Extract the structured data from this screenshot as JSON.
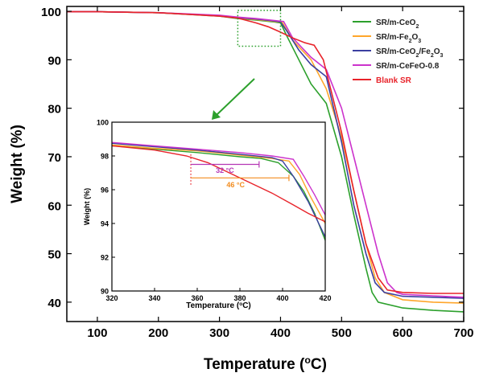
{
  "chart_data": {
    "type": "line",
    "xlabel": {
      "text": "Temperature (",
      "sup": "o",
      "tail": "C)"
    },
    "ylabel": "Weight (%)",
    "xlim": [
      50,
      700
    ],
    "ylim": [
      36,
      101
    ],
    "x_ticks": [
      100,
      200,
      300,
      400,
      500,
      600,
      700
    ],
    "y_ticks": [
      40,
      50,
      60,
      70,
      80,
      90,
      100
    ],
    "legend_position": "top-right",
    "series": [
      {
        "name": "SR/m-CeO2",
        "legend": [
          [
            "SR/m-CeO",
            ""
          ],
          [
            "2",
            "sub"
          ]
        ],
        "color": "#2ca02c",
        "points": [
          [
            50,
            99.9
          ],
          [
            100,
            99.9
          ],
          [
            200,
            99.7
          ],
          [
            300,
            99.0
          ],
          [
            330,
            98.5
          ],
          [
            360,
            98.2
          ],
          [
            390,
            97.8
          ],
          [
            400,
            97.6
          ],
          [
            410,
            95.0
          ],
          [
            430,
            90.0
          ],
          [
            450,
            85.0
          ],
          [
            475,
            81.0
          ],
          [
            500,
            70.0
          ],
          [
            520,
            58.0
          ],
          [
            540,
            47.0
          ],
          [
            550,
            42.0
          ],
          [
            560,
            40.0
          ],
          [
            600,
            38.8
          ],
          [
            650,
            38.3
          ],
          [
            700,
            38.0
          ]
        ]
      },
      {
        "name": "SR/m-Fe2O3",
        "legend": [
          [
            "SR/m-Fe",
            ""
          ],
          [
            "2",
            "sub"
          ],
          [
            "O",
            ""
          ],
          [
            "3",
            "sub"
          ]
        ],
        "color": "#ffa62b",
        "points": [
          [
            50,
            99.9
          ],
          [
            100,
            99.9
          ],
          [
            200,
            99.7
          ],
          [
            300,
            99.1
          ],
          [
            330,
            98.6
          ],
          [
            360,
            98.3
          ],
          [
            390,
            97.9
          ],
          [
            403,
            97.7
          ],
          [
            420,
            94.0
          ],
          [
            450,
            90.0
          ],
          [
            475,
            84.0
          ],
          [
            500,
            74.0
          ],
          [
            520,
            63.0
          ],
          [
            540,
            52.0
          ],
          [
            555,
            45.0
          ],
          [
            570,
            42.0
          ],
          [
            600,
            40.5
          ],
          [
            650,
            40.0
          ],
          [
            700,
            39.8
          ]
        ]
      },
      {
        "name": "SR/m-CeO2/Fe2O3",
        "legend": [
          [
            "SR/m-CeO",
            ""
          ],
          [
            "2",
            "sub"
          ],
          [
            "/Fe",
            ""
          ],
          [
            "2",
            "sub"
          ],
          [
            "O",
            ""
          ],
          [
            "3",
            "sub"
          ]
        ],
        "color": "#3b3fa0",
        "points": [
          [
            50,
            99.9
          ],
          [
            100,
            99.9
          ],
          [
            200,
            99.7
          ],
          [
            300,
            99.1
          ],
          [
            330,
            98.7
          ],
          [
            360,
            98.4
          ],
          [
            390,
            98.0
          ],
          [
            400,
            97.8
          ],
          [
            410,
            96.0
          ],
          [
            430,
            92.0
          ],
          [
            450,
            89.0
          ],
          [
            475,
            86.5
          ],
          [
            500,
            73.0
          ],
          [
            520,
            60.0
          ],
          [
            540,
            50.0
          ],
          [
            555,
            44.0
          ],
          [
            570,
            42.0
          ],
          [
            600,
            41.2
          ],
          [
            650,
            41.0
          ],
          [
            700,
            40.8
          ]
        ]
      },
      {
        "name": "SR/m-CeFeO-0.8",
        "legend": [
          [
            "SR/m-CeFeO-0.8",
            ""
          ]
        ],
        "color": "#cc33cc",
        "points": [
          [
            50,
            99.9
          ],
          [
            100,
            99.9
          ],
          [
            200,
            99.7
          ],
          [
            300,
            99.2
          ],
          [
            330,
            98.8
          ],
          [
            360,
            98.5
          ],
          [
            390,
            98.1
          ],
          [
            405,
            97.9
          ],
          [
            420,
            94.5
          ],
          [
            450,
            90.5
          ],
          [
            475,
            88.0
          ],
          [
            500,
            80.0
          ],
          [
            520,
            70.0
          ],
          [
            540,
            60.0
          ],
          [
            560,
            50.0
          ],
          [
            575,
            44.0
          ],
          [
            590,
            42.0
          ],
          [
            600,
            41.6
          ],
          [
            650,
            41.3
          ],
          [
            700,
            41.0
          ]
        ]
      },
      {
        "name": "Blank SR",
        "legend": [
          [
            "Blank SR",
            ""
          ]
        ],
        "color": "#e8232a",
        "points": [
          [
            50,
            99.9
          ],
          [
            100,
            99.9
          ],
          [
            200,
            99.7
          ],
          [
            300,
            99.0
          ],
          [
            330,
            98.6
          ],
          [
            360,
            97.6
          ],
          [
            380,
            96.8
          ],
          [
            400,
            95.7
          ],
          [
            420,
            94.5
          ],
          [
            440,
            93.5
          ],
          [
            455,
            93.0
          ],
          [
            470,
            90.0
          ],
          [
            500,
            75.0
          ],
          [
            520,
            63.0
          ],
          [
            540,
            52.0
          ],
          [
            560,
            45.0
          ],
          [
            575,
            42.5
          ],
          [
            600,
            42.0
          ],
          [
            650,
            41.8
          ],
          [
            700,
            41.8
          ]
        ]
      }
    ],
    "inset": {
      "xlabel": {
        "text": "Temperature (",
        "sup": "o",
        "tail": "C)"
      },
      "ylabel": "Weight (%)",
      "xlim": [
        320,
        420
      ],
      "ylim": [
        90,
        100
      ],
      "x_ticks": [
        320,
        340,
        360,
        380,
        400,
        420
      ],
      "y_ticks": [
        90,
        92,
        94,
        96,
        98,
        100
      ],
      "annotations": [
        {
          "text": "32 °C",
          "color": "#b536b5",
          "x1": 357,
          "x2": 389,
          "y": 97.5,
          "text_x": 373,
          "text_y": 97.0
        },
        {
          "text": "46 °C",
          "color": "#f28c1f",
          "x1": 357,
          "x2": 403,
          "y": 96.7,
          "text_x": 378,
          "text_y": 96.15
        }
      ],
      "series_points": {
        "SR/m-CeO2": [
          [
            320,
            98.6
          ],
          [
            340,
            98.4
          ],
          [
            360,
            98.2
          ],
          [
            380,
            97.95
          ],
          [
            390,
            97.85
          ],
          [
            398,
            97.6
          ],
          [
            405,
            96.8
          ],
          [
            410,
            95.9
          ],
          [
            415,
            94.6
          ],
          [
            420,
            93.0
          ]
        ],
        "SR/m-Fe2O3": [
          [
            320,
            98.65
          ],
          [
            340,
            98.45
          ],
          [
            360,
            98.3
          ],
          [
            380,
            98.05
          ],
          [
            395,
            97.85
          ],
          [
            403,
            97.7
          ],
          [
            408,
            96.9
          ],
          [
            413,
            95.6
          ],
          [
            420,
            94.0
          ]
        ],
        "SR/m-CeO2/Fe2O3": [
          [
            320,
            98.75
          ],
          [
            340,
            98.55
          ],
          [
            360,
            98.35
          ],
          [
            380,
            98.1
          ],
          [
            395,
            97.9
          ],
          [
            400,
            97.7
          ],
          [
            405,
            96.8
          ],
          [
            412,
            95.3
          ],
          [
            420,
            93.2
          ]
        ],
        "SR/m-CeFeO-0.8": [
          [
            320,
            98.8
          ],
          [
            340,
            98.6
          ],
          [
            360,
            98.4
          ],
          [
            380,
            98.2
          ],
          [
            395,
            98.0
          ],
          [
            405,
            97.8
          ],
          [
            410,
            96.8
          ],
          [
            415,
            95.7
          ],
          [
            420,
            94.5
          ]
        ],
        "Blank SR": [
          [
            320,
            98.6
          ],
          [
            340,
            98.35
          ],
          [
            355,
            98.0
          ],
          [
            365,
            97.6
          ],
          [
            375,
            97.0
          ],
          [
            385,
            96.4
          ],
          [
            395,
            95.8
          ],
          [
            405,
            95.1
          ],
          [
            412,
            94.6
          ],
          [
            420,
            94.1
          ]
        ]
      }
    }
  }
}
